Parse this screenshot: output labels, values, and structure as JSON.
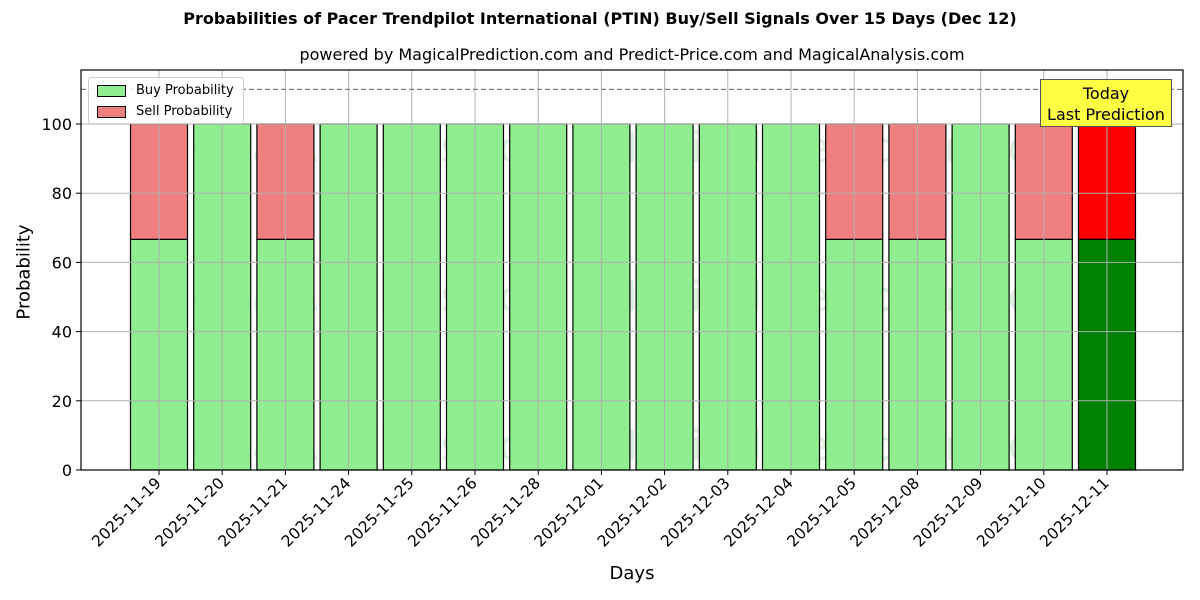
{
  "header": {
    "title": "Probabilities of Pacer Trendpilot International  (PTIN) Buy/Sell Signals Over 15 Days (Dec 12)",
    "subtitle": "powered by MagicalPrediction.com and Predict-Price.com and MagicalAnalysis.com"
  },
  "legend": {
    "buy_label": "Buy Probability",
    "sell_label": "Sell Probability"
  },
  "annotation": {
    "line1": "Today",
    "line2": "Last Prediction"
  },
  "watermarks": [
    "MagicalAnalysis.com",
    "MagicalPrediction.com"
  ],
  "colors": {
    "buy": "#90ee90",
    "sell": "#f08080",
    "buy_today": "#008000",
    "sell_today": "#ff0000",
    "annotation_bg": "#ffff44"
  },
  "chart_data": {
    "type": "bar",
    "stacked": true,
    "title": "Probabilities of Pacer Trendpilot International  (PTIN) Buy/Sell Signals Over 15 Days (Dec 12)",
    "subtitle": "powered by MagicalPrediction.com and Predict-Price.com and MagicalAnalysis.com",
    "xlabel": "Days",
    "ylabel": "Probability",
    "ylim": [
      0,
      115
    ],
    "yticks": [
      0,
      20,
      40,
      60,
      80,
      100
    ],
    "grid": true,
    "legend_position": "upper left",
    "reference_line": {
      "y": 110,
      "style": "dashed"
    },
    "categories": [
      "2025-11-19",
      "2025-11-20",
      "2025-11-21",
      "2025-11-24",
      "2025-11-25",
      "2025-11-26",
      "2025-11-28",
      "2025-12-01",
      "2025-12-02",
      "2025-12-03",
      "2025-12-04",
      "2025-12-05",
      "2025-12-08",
      "2025-12-09",
      "2025-12-10",
      "2025-12-11"
    ],
    "series": [
      {
        "name": "Buy Probability",
        "values": [
          66.67,
          100,
          66.67,
          100,
          100,
          100,
          100,
          100,
          100,
          100,
          100,
          66.67,
          66.67,
          100,
          66.67,
          66.67
        ]
      },
      {
        "name": "Sell Probability",
        "values": [
          33.33,
          0,
          33.33,
          0,
          0,
          0,
          0,
          0,
          0,
          0,
          0,
          33.33,
          33.33,
          0,
          33.33,
          33.33
        ]
      }
    ],
    "annotations": [
      {
        "text": "Today\nLast Prediction",
        "x": "2025-12-11"
      }
    ]
  }
}
